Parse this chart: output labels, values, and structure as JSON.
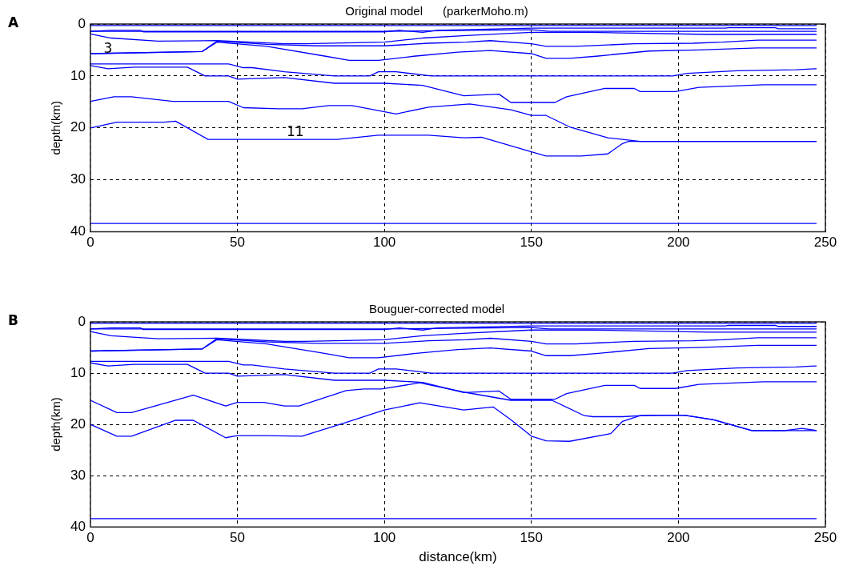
{
  "chart_data": [
    {
      "type": "line",
      "title": "Original model      (parkerMoho.m)",
      "ylabel": "depth(km)",
      "xlim": [
        0,
        250
      ],
      "xticks": [
        0,
        50,
        100,
        150,
        200,
        250
      ],
      "ylim": [
        40,
        0
      ],
      "yticks": [
        0,
        10,
        20,
        30,
        40
      ],
      "grid": true,
      "legend": false,
      "marker": "none",
      "line_style": "solid",
      "annotations": [
        "A",
        {
          "text": "3",
          "x": 6,
          "y": 4.9
        },
        "11"
      ],
      "series": [
        {
          "color": "#0000ff",
          "x": [
            0,
            247
          ],
          "values": [
            0.3,
            0.3
          ]
        },
        {
          "color": "#0000ff",
          "x": [
            0,
            7,
            17,
            18,
            100,
            105,
            113,
            118,
            150,
            216,
            217,
            233,
            234,
            247
          ],
          "values": [
            1.4,
            1.2,
            1.2,
            1.5,
            1.5,
            1.2,
            1.6,
            1.2,
            0.8,
            0.8,
            0.7,
            0.7,
            0.9,
            0.9
          ]
        },
        {
          "color": "#0000ff",
          "x": [
            0,
            100,
            150,
            156,
            247
          ],
          "values": [
            1.4,
            1.4,
            1.1,
            1.4,
            1.4
          ]
        },
        {
          "color": "#0000ff",
          "x": [
            0,
            7,
            23,
            43,
            66,
            73,
            100,
            113,
            128,
            150,
            170,
            210,
            247
          ],
          "values": [
            1.9,
            2.7,
            3.3,
            3.2,
            3.8,
            3.8,
            3.5,
            2.7,
            2.2,
            1.6,
            1.6,
            2.0,
            2.0
          ]
        },
        {
          "color": "#0000ff",
          "x": [
            0,
            38,
            43,
            60,
            77,
            100,
            115,
            128,
            136,
            150,
            155,
            165,
            173,
            185,
            205,
            215,
            227,
            247
          ],
          "values": [
            5.7,
            5.3,
            3.3,
            3.9,
            4.2,
            4.2,
            3.7,
            3.5,
            3.2,
            3.8,
            4.3,
            4.3,
            4.1,
            3.8,
            3.7,
            3.5,
            3.1,
            3.1
          ]
        },
        {
          "color": "#0000ff",
          "x": [
            0,
            38,
            43,
            60,
            80,
            88,
            98,
            110,
            125,
            136,
            150,
            155,
            163,
            172,
            190,
            207,
            227,
            247
          ],
          "values": [
            5.7,
            5.3,
            3.5,
            4.3,
            6.2,
            7.0,
            7.0,
            6.2,
            5.4,
            5.1,
            5.7,
            6.6,
            6.6,
            6.2,
            5.2,
            5.0,
            4.6,
            4.6
          ]
        },
        {
          "color": "#0000ff",
          "x": [
            0,
            47,
            52,
            55,
            66,
            83,
            95,
            98,
            104,
            116,
            198,
            203,
            220,
            240,
            247
          ],
          "values": [
            7.7,
            7.7,
            8.4,
            8.4,
            9.2,
            10,
            10,
            9.2,
            9.2,
            10,
            10,
            9.5,
            9.0,
            8.8,
            8.6
          ]
        },
        {
          "color": "#0000ff",
          "x": [
            0,
            6,
            15,
            33,
            39,
            47,
            50,
            66,
            83,
            100,
            113,
            127,
            139,
            143,
            158,
            162,
            175,
            185,
            187,
            199,
            207,
            229,
            247
          ],
          "values": [
            8.0,
            8.6,
            8.3,
            8.3,
            10,
            10,
            10.6,
            10.3,
            11.4,
            11.4,
            11.8,
            13.8,
            13.5,
            15.1,
            15.1,
            14.0,
            12.4,
            12.4,
            13.0,
            13.0,
            12.2,
            11.7,
            11.7
          ]
        },
        {
          "color": "#0000ff",
          "x": [
            0,
            8,
            14,
            28,
            47,
            52,
            64,
            72,
            81,
            89,
            104,
            115,
            129,
            143,
            150,
            155,
            163,
            176,
            187,
            247
          ],
          "values": [
            14.9,
            14.0,
            14.0,
            14.9,
            14.9,
            16.1,
            16.3,
            16.3,
            15.7,
            15.7,
            17.3,
            16.0,
            15.4,
            16.5,
            17.6,
            17.6,
            19.8,
            21.9,
            22.6,
            22.6
          ]
        },
        {
          "color": "#0000ff",
          "x": [
            0,
            9,
            25,
            29,
            40,
            84,
            98,
            115,
            127,
            133,
            150,
            155,
            167,
            176,
            181,
            183,
            247
          ],
          "values": [
            20.0,
            18.9,
            18.9,
            18.7,
            22.2,
            22.2,
            21.4,
            21.4,
            21.9,
            21.8,
            24.6,
            25.4,
            25.4,
            25.0,
            23.0,
            22.6,
            22.6
          ]
        },
        {
          "color": "#0000ff",
          "x": [
            0,
            247
          ],
          "values": [
            38.4,
            38.4
          ]
        }
      ]
    },
    {
      "type": "line",
      "title": "Bouguer-corrected model",
      "xlabel": "distance(km)",
      "ylabel": "depth(km)",
      "xlim": [
        0,
        250
      ],
      "xticks": [
        0,
        50,
        100,
        150,
        200,
        250
      ],
      "ylim": [
        40,
        0
      ],
      "yticks": [
        0,
        10,
        20,
        30,
        40
      ],
      "grid": true,
      "legend": false,
      "marker": "none",
      "line_style": "solid",
      "annotations": [
        "B"
      ],
      "series": [
        {
          "color": "#0000ff",
          "x": [
            0,
            247
          ],
          "values": [
            0.3,
            0.3
          ]
        },
        {
          "color": "#0000ff",
          "x": [
            0,
            7,
            17,
            18,
            100,
            105,
            113,
            118,
            150,
            216,
            217,
            233,
            234,
            247
          ],
          "values": [
            1.4,
            1.2,
            1.2,
            1.5,
            1.5,
            1.2,
            1.6,
            1.2,
            0.8,
            0.8,
            0.7,
            0.7,
            0.9,
            0.9
          ]
        },
        {
          "color": "#0000ff",
          "x": [
            0,
            100,
            150,
            156,
            247
          ],
          "values": [
            1.4,
            1.4,
            1.1,
            1.4,
            1.4
          ]
        },
        {
          "color": "#0000ff",
          "x": [
            0,
            7,
            23,
            43,
            66,
            73,
            100,
            113,
            128,
            150,
            170,
            210,
            247
          ],
          "values": [
            1.9,
            2.7,
            3.3,
            3.2,
            3.8,
            3.8,
            3.5,
            2.7,
            2.2,
            1.6,
            1.6,
            2.0,
            2.0
          ]
        },
        {
          "color": "#0000ff",
          "x": [
            0,
            38,
            43,
            60,
            77,
            100,
            115,
            128,
            136,
            150,
            155,
            165,
            173,
            185,
            205,
            215,
            227,
            247
          ],
          "values": [
            5.7,
            5.3,
            3.3,
            3.9,
            4.2,
            4.2,
            3.7,
            3.5,
            3.2,
            3.8,
            4.3,
            4.3,
            4.1,
            3.8,
            3.7,
            3.5,
            3.1,
            3.1
          ]
        },
        {
          "color": "#0000ff",
          "x": [
            0,
            38,
            43,
            60,
            80,
            88,
            98,
            110,
            125,
            136,
            150,
            155,
            163,
            172,
            190,
            207,
            227,
            247
          ],
          "values": [
            5.7,
            5.3,
            3.5,
            4.3,
            6.2,
            7.0,
            7.0,
            6.2,
            5.4,
            5.1,
            5.7,
            6.6,
            6.6,
            6.2,
            5.2,
            5.0,
            4.6,
            4.6
          ]
        },
        {
          "color": "#0000ff",
          "x": [
            0,
            47,
            52,
            55,
            66,
            83,
            95,
            98,
            104,
            116,
            198,
            203,
            220,
            240,
            247
          ],
          "values": [
            7.7,
            7.7,
            8.4,
            8.4,
            9.2,
            10,
            10,
            9.2,
            9.2,
            10,
            10,
            9.5,
            9.0,
            8.8,
            8.6
          ]
        },
        {
          "color": "#0000ff",
          "x": [
            0,
            6,
            15,
            33,
            39,
            47,
            50,
            66,
            83,
            100,
            113,
            127,
            139,
            143,
            158,
            162,
            175,
            185,
            187,
            199,
            207,
            229,
            247
          ],
          "values": [
            8.0,
            8.6,
            8.3,
            8.3,
            10,
            10,
            10.6,
            10.3,
            11.4,
            11.4,
            11.8,
            13.8,
            13.5,
            15.1,
            15.1,
            14.0,
            12.4,
            12.4,
            13.0,
            13.0,
            12.2,
            11.7,
            11.7
          ]
        },
        {
          "color": "#0000ff",
          "x": [
            0,
            9,
            14,
            35,
            46,
            50,
            59,
            66,
            71,
            87,
            93,
            99,
            112,
            127,
            143,
            157,
            168,
            171,
            181,
            190,
            202,
            212,
            225,
            236,
            242,
            247
          ],
          "values": [
            15.3,
            17.7,
            17.7,
            14.3,
            16.4,
            15.7,
            15.7,
            16.4,
            16.4,
            13.4,
            13.1,
            13.1,
            11.9,
            13.7,
            15.3,
            15.3,
            18.3,
            18.5,
            18.5,
            18.2,
            18.2,
            19.1,
            21.2,
            21.2,
            20.8,
            21.2
          ]
        },
        {
          "color": "#0000ff",
          "x": [
            0,
            9,
            14,
            29,
            35,
            46,
            50,
            59,
            72,
            87,
            100,
            112,
            127,
            137,
            143,
            150,
            155,
            163,
            177,
            181,
            187,
            202,
            212,
            225,
            247
          ],
          "values": [
            20.0,
            22.3,
            22.3,
            19.2,
            19.2,
            22.6,
            22.2,
            22.2,
            22.3,
            19.6,
            17.2,
            15.8,
            17.2,
            16.6,
            19.1,
            22.3,
            23.2,
            23.3,
            21.8,
            19.4,
            18.3,
            18.2,
            19.1,
            21.2,
            21.2
          ]
        },
        {
          "color": "#0000ff",
          "x": [
            0,
            247
          ],
          "values": [
            38.4,
            38.4
          ]
        }
      ]
    }
  ]
}
